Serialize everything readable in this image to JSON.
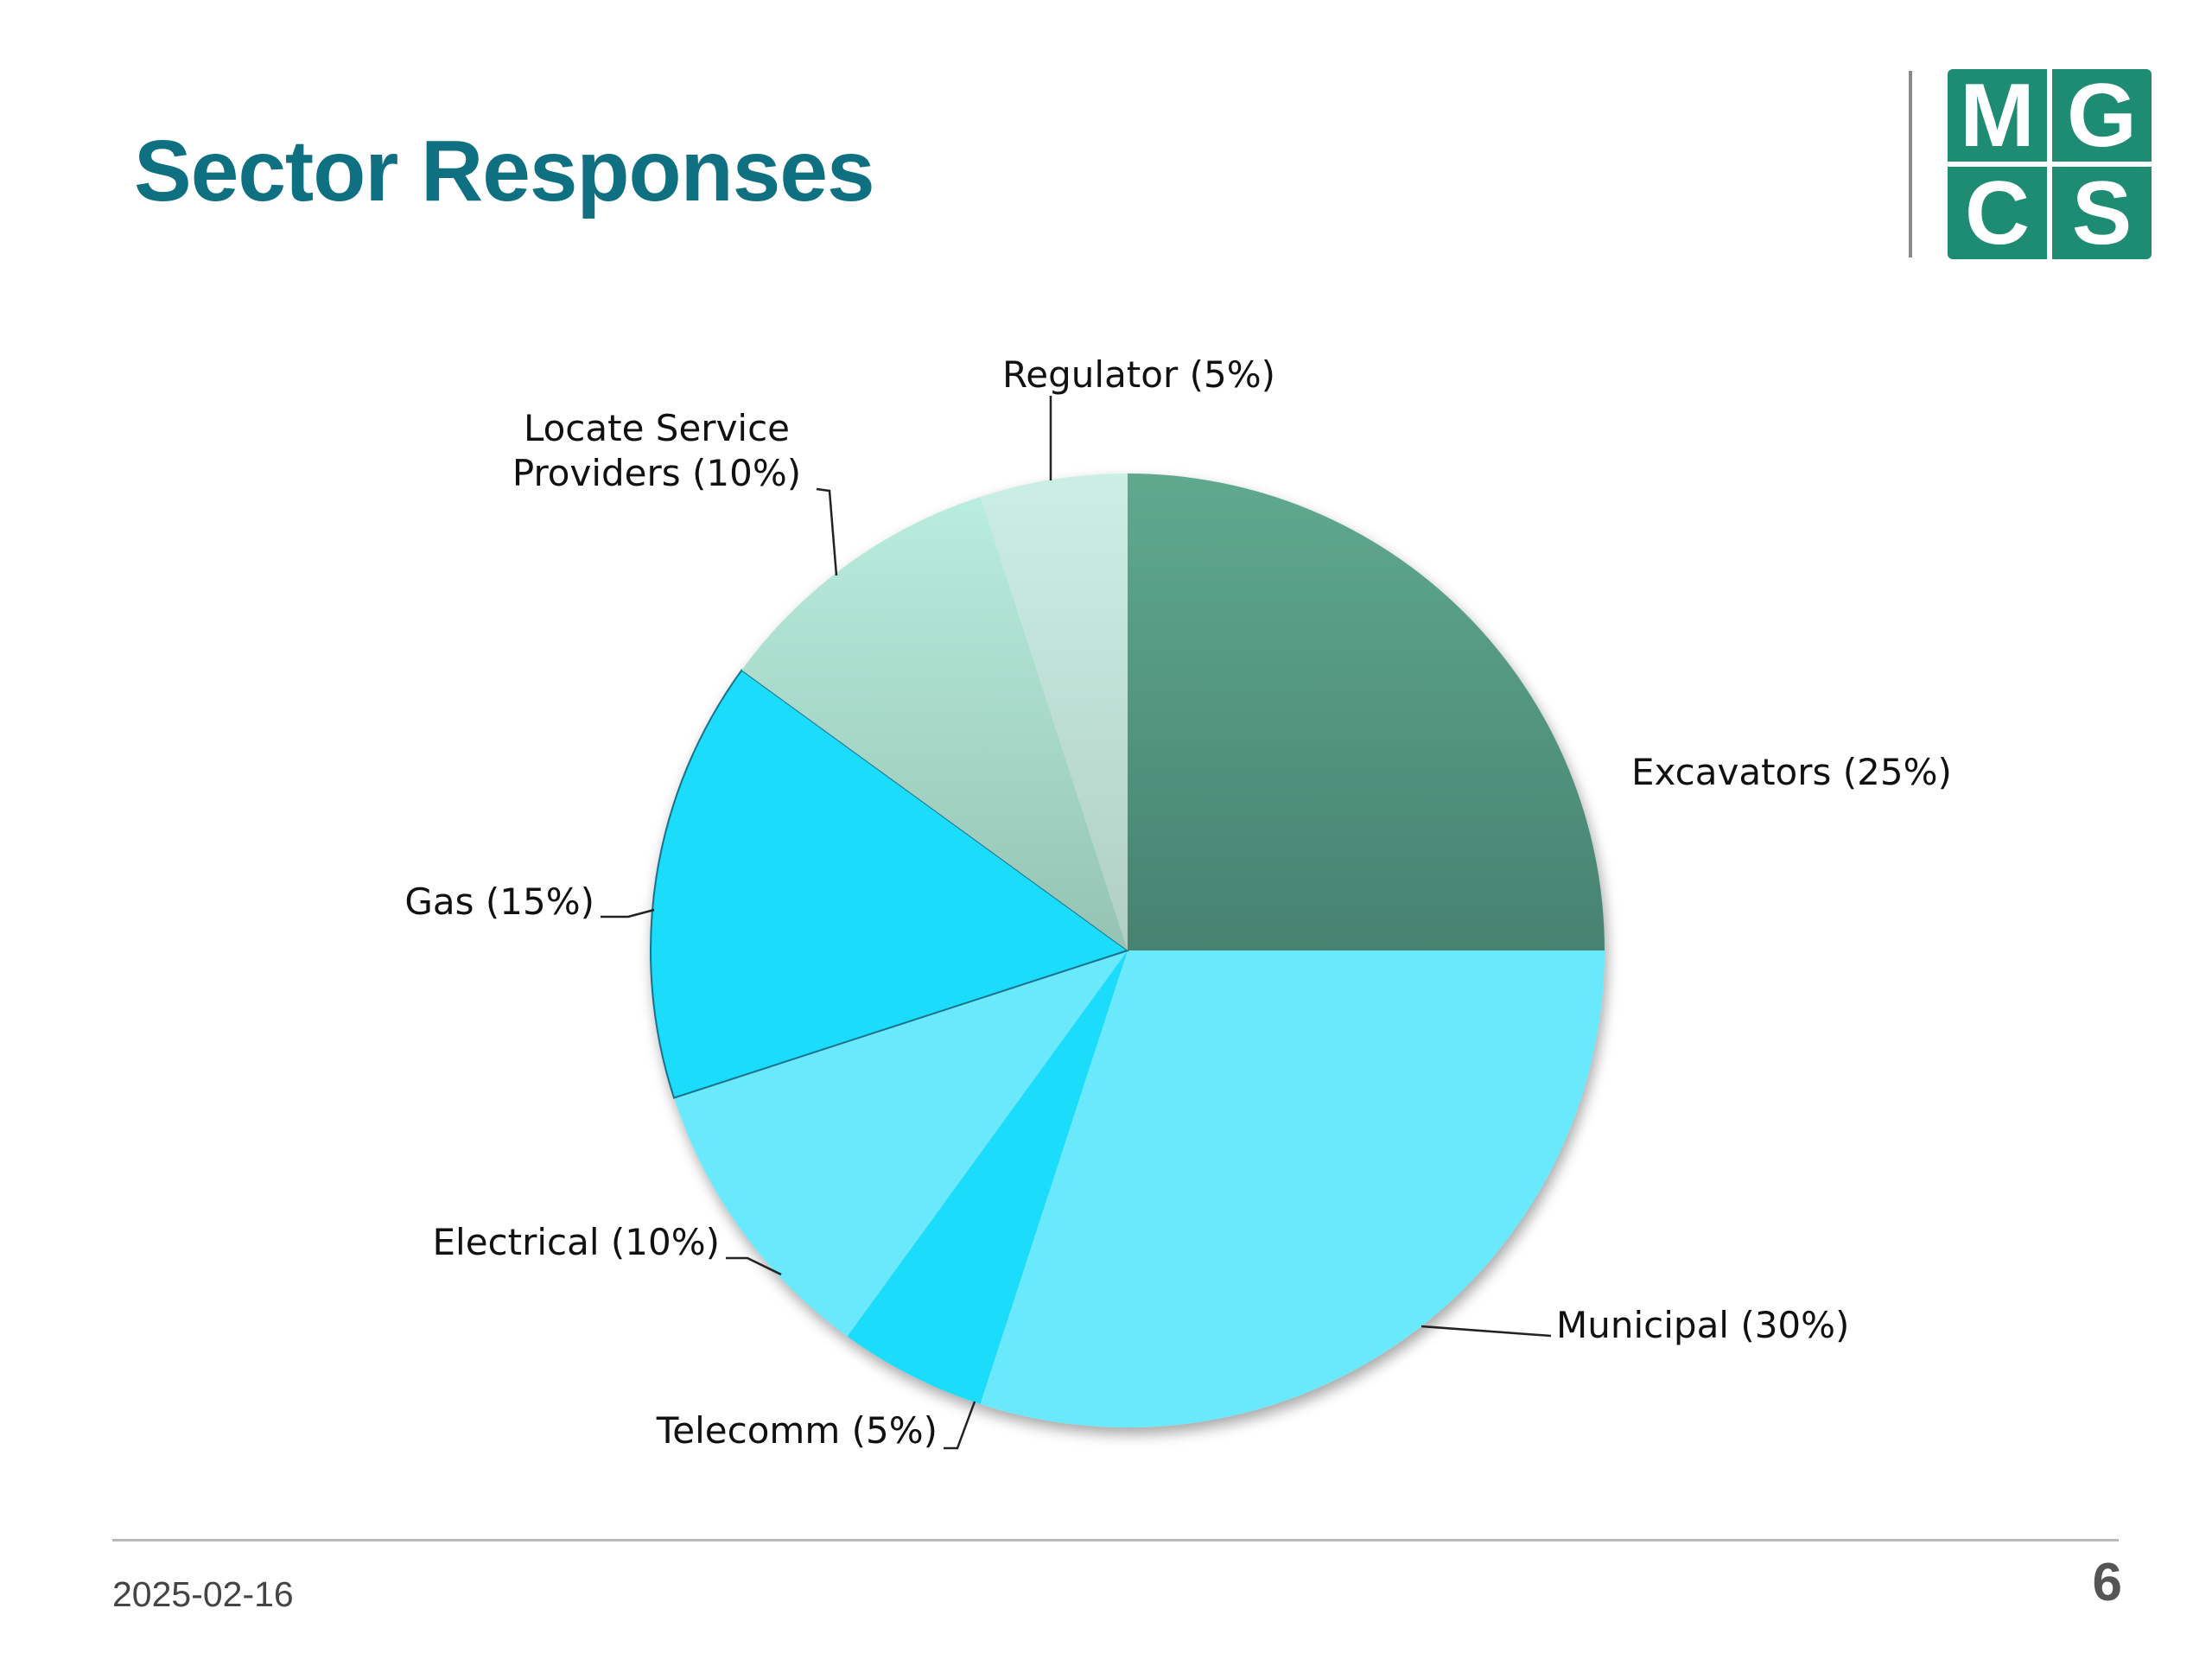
{
  "slide": {
    "title": "Sector Responses",
    "date": "2025-02-16",
    "page_number": "6"
  },
  "logo": {
    "letters": [
      "M",
      "G",
      "C",
      "S"
    ],
    "color": "#1d8c72"
  },
  "colors": {
    "title": "#0e7081"
  },
  "chart_data": {
    "type": "pie",
    "title": "",
    "slices": [
      {
        "label": "Excavators (25%)",
        "value": 25,
        "color_top": "#5fa98f",
        "color_bottom": "#478270"
      },
      {
        "label": "Municipal (30%)",
        "value": 30,
        "color_top": "#6ae9fc",
        "color_bottom": "#6ae9fc"
      },
      {
        "label": "Telecomm (5%)",
        "value": 5,
        "color_top": "#1adcfc",
        "color_bottom": "#1adcfc"
      },
      {
        "label": "Electrical (10%)",
        "value": 10,
        "color_top": "#6ae9fc",
        "color_bottom": "#6ae9fc"
      },
      {
        "label": "Gas (15%)",
        "value": 15,
        "color_top": "#1adcfc",
        "color_bottom": "#1adcfc"
      },
      {
        "label": "Locate Service Providers (10%)",
        "value": 10,
        "color_top": "#b9edde",
        "color_bottom": "#95c3b3"
      },
      {
        "label": "Regulator (5%)",
        "value": 5,
        "color_top": "#cbefe5",
        "color_bottom": "#b1cec4"
      }
    ],
    "start_angle": "12 o'clock",
    "direction": "clockwise",
    "legend": "none",
    "data_labels": "outside with leader lines"
  }
}
